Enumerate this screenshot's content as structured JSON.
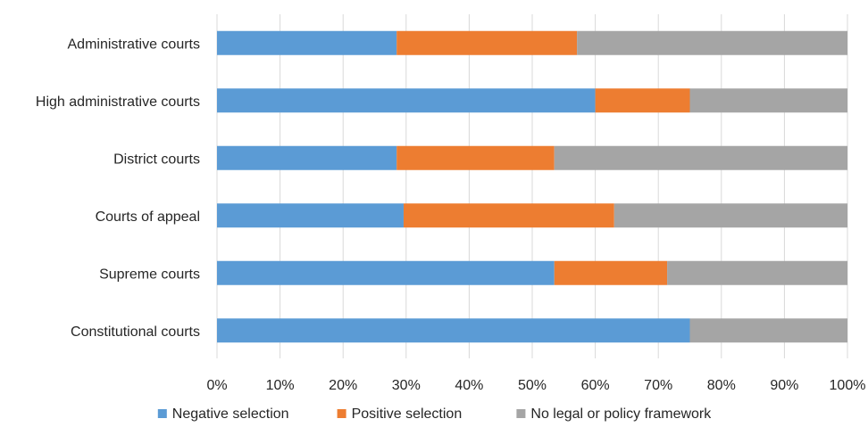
{
  "chart_data": {
    "type": "bar",
    "orientation": "horizontal",
    "stacked": "100%",
    "categories": [
      "Administrative courts",
      "High administrative courts",
      "District courts",
      "Courts of appeal",
      "Supreme courts",
      "Constitutional courts"
    ],
    "series": [
      {
        "name": "Negative selection",
        "color": "#5b9bd5",
        "values": [
          28.5,
          60,
          28.5,
          29.6,
          53.5,
          75
        ]
      },
      {
        "name": "Positive selection",
        "color": "#ed7d31",
        "values": [
          28.6,
          15,
          25,
          33.4,
          17.9,
          0
        ]
      },
      {
        "name": "No legal or policy framework",
        "color": "#a5a5a5",
        "values": [
          42.9,
          25,
          46.5,
          37,
          28.6,
          25
        ]
      }
    ],
    "xlim": [
      0,
      100
    ],
    "x_ticks": [
      "0%",
      "10%",
      "20%",
      "30%",
      "40%",
      "50%",
      "60%",
      "70%",
      "80%",
      "90%",
      "100%"
    ],
    "grid": true,
    "legend_position": "bottom"
  }
}
